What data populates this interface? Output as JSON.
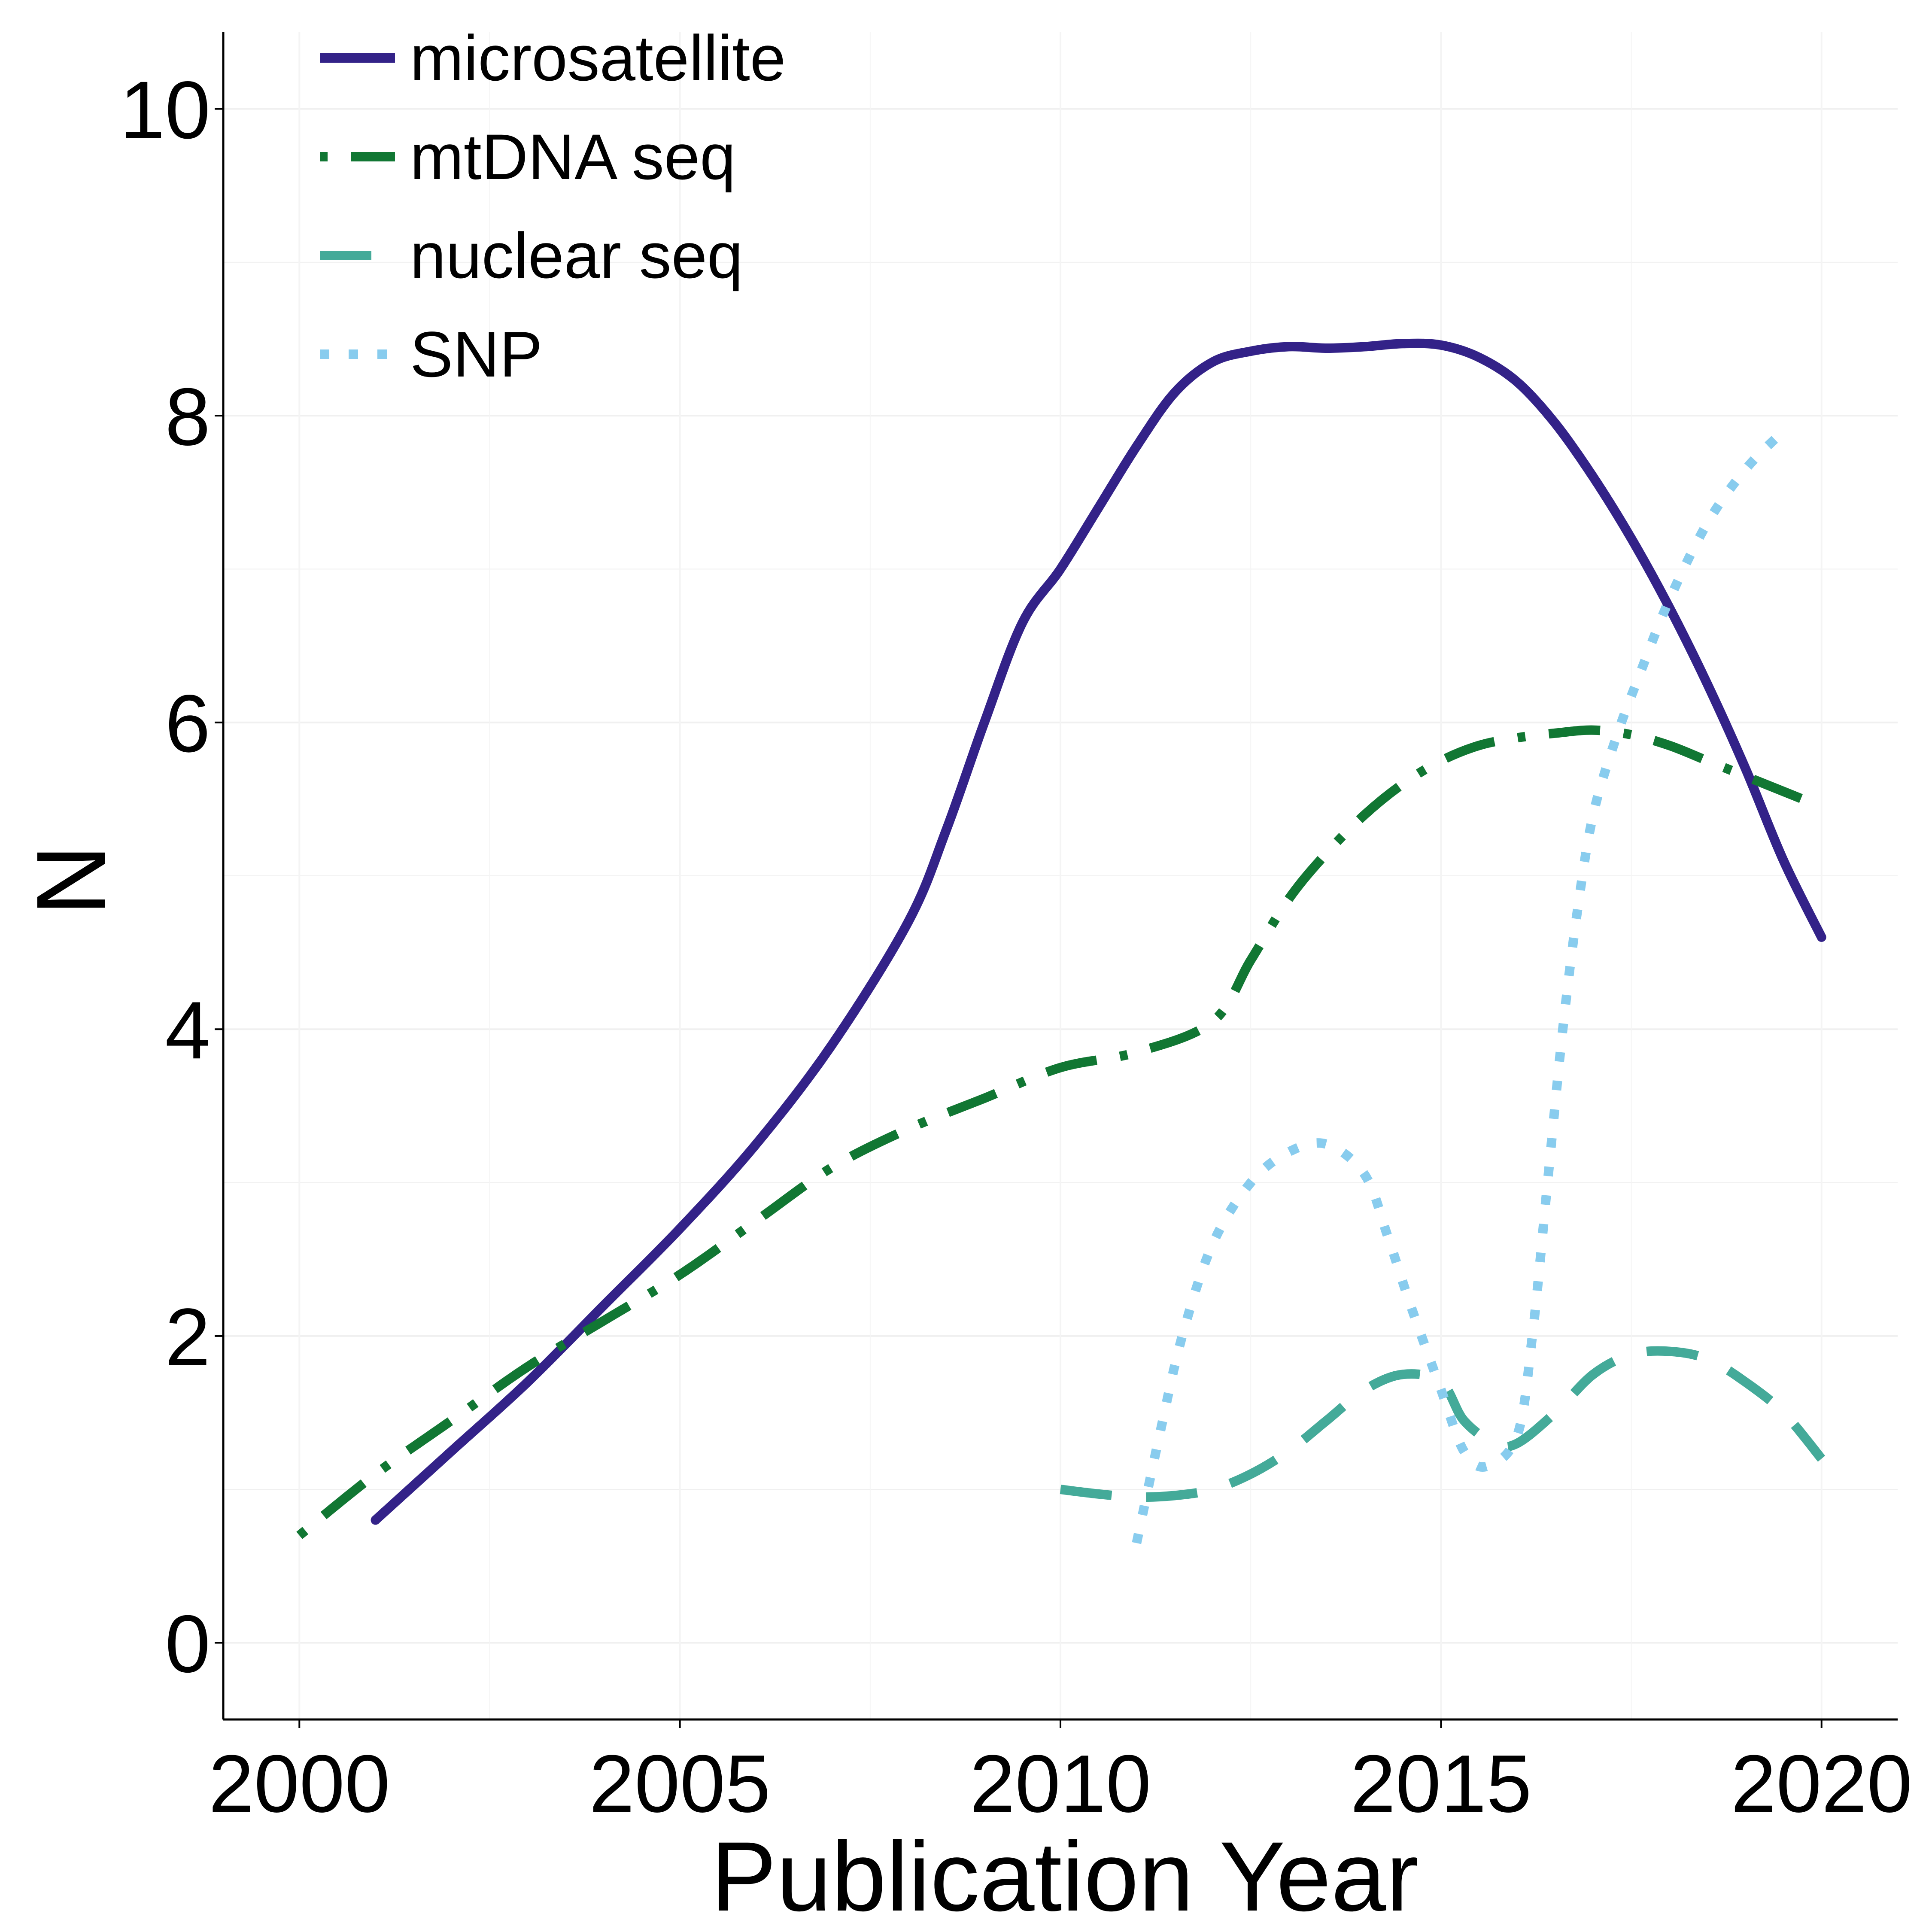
{
  "chart_data": {
    "type": "line",
    "title": "",
    "xlabel": "Publication Year",
    "ylabel": "N",
    "xlim": [
      1999,
      2021
    ],
    "ylim": [
      -0.5,
      10.5
    ],
    "x_ticks": [
      "2000",
      "2005",
      "2010",
      "2015",
      "2020"
    ],
    "y_ticks": [
      "0",
      "2",
      "4",
      "6",
      "8",
      "10"
    ],
    "grid": true,
    "legend_position": "top-left",
    "series": [
      {
        "name": "microsatellite",
        "color": "#332288",
        "dash": "solid",
        "x": [
          2001,
          2002,
          2003,
          2004,
          2005,
          2006,
          2007,
          2008,
          2008.5,
          2009,
          2009.5,
          2010,
          2010.5,
          2011,
          2011.5,
          2012,
          2012.5,
          2013,
          2013.5,
          2014,
          2014.5,
          2015,
          2015.5,
          2016,
          2016.5,
          2017,
          2017.5,
          2018,
          2018.5,
          2019,
          2019.5,
          2020
        ],
        "y": [
          0.8,
          1.25,
          1.7,
          2.2,
          2.7,
          3.25,
          3.9,
          4.7,
          5.3,
          6.0,
          6.65,
          7.0,
          7.4,
          7.8,
          8.15,
          8.35,
          8.42,
          8.45,
          8.44,
          8.45,
          8.47,
          8.46,
          8.38,
          8.22,
          7.95,
          7.6,
          7.2,
          6.75,
          6.25,
          5.7,
          5.1,
          4.6
        ]
      },
      {
        "name": "mtDNA seq",
        "color": "#117733",
        "dash": "dot-dash",
        "x": [
          2000,
          2001,
          2002,
          2003,
          2004,
          2005,
          2006,
          2007,
          2008,
          2009,
          2010,
          2011,
          2012,
          2012.5,
          2013,
          2013.5,
          2014,
          2014.5,
          2015,
          2015.5,
          2016,
          2016.5,
          2017,
          2017.5,
          2018,
          2018.5,
          2019,
          2019.5,
          2020
        ],
        "y": [
          0.7,
          1.1,
          1.45,
          1.8,
          2.1,
          2.4,
          2.75,
          3.1,
          3.35,
          3.55,
          3.75,
          3.85,
          4.05,
          4.45,
          4.85,
          5.15,
          5.4,
          5.6,
          5.75,
          5.85,
          5.9,
          5.93,
          5.95,
          5.92,
          5.85,
          5.75,
          5.65,
          5.55,
          5.45
        ]
      },
      {
        "name": "nuclear seq",
        "color": "#44AA99",
        "dash": "dashed",
        "x": [
          2010,
          2010.5,
          2011,
          2011.5,
          2012,
          2012.5,
          2013,
          2013.5,
          2014,
          2014.5,
          2015,
          2015.3,
          2015.7,
          2016,
          2016.5,
          2017,
          2017.5,
          2018,
          2018.5,
          2019,
          2019.5,
          2020
        ],
        "y": [
          1.0,
          0.97,
          0.95,
          0.96,
          1.0,
          1.1,
          1.25,
          1.45,
          1.65,
          1.75,
          1.7,
          1.45,
          1.3,
          1.3,
          1.5,
          1.75,
          1.88,
          1.9,
          1.85,
          1.7,
          1.5,
          1.2
        ]
      },
      {
        "name": "SNP",
        "color": "#88CCEE",
        "dash": "dotted",
        "x": [
          2011,
          2011.3,
          2011.6,
          2012,
          2012.5,
          2013,
          2013.5,
          2014,
          2014.3,
          2014.6,
          2015,
          2015.3,
          2015.6,
          2016,
          2016.2,
          2016.4,
          2016.6,
          2016.8,
          2017,
          2017.3,
          2017.6,
          2018,
          2018.5,
          2019,
          2019.5
        ],
        "y": [
          0.65,
          1.35,
          2.0,
          2.6,
          3.0,
          3.2,
          3.25,
          3.05,
          2.65,
          2.2,
          1.65,
          1.25,
          1.15,
          1.35,
          2.0,
          3.0,
          4.0,
          4.8,
          5.4,
          5.9,
          6.3,
          6.8,
          7.3,
          7.65,
          7.9
        ]
      }
    ]
  }
}
